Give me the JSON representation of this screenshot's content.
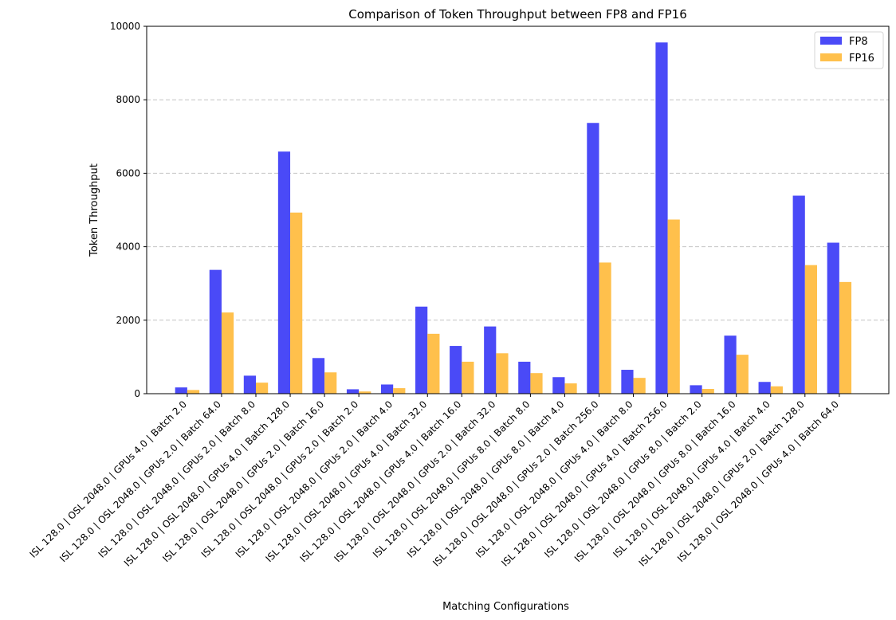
{
  "chart_data": {
    "type": "bar",
    "title": "Comparison of Token Throughput between FP8 and FP16",
    "xlabel": "Matching Configurations",
    "ylabel": "Token Throughput",
    "ylim": [
      0,
      10000
    ],
    "yticks": [
      0,
      2000,
      4000,
      6000,
      8000,
      10000
    ],
    "grid": "y-dashed",
    "legend_position": "top-right",
    "categories": [
      "ISL 128.0 | OSL 2048.0 | GPUs 4.0 | Batch 2.0",
      "ISL 128.0 | OSL 2048.0 | GPUs 2.0 | Batch 64.0",
      "ISL 128.0 | OSL 2048.0 | GPUs 2.0 | Batch 8.0",
      "ISL 128.0 | OSL 2048.0 | GPUs 4.0 | Batch 128.0",
      "ISL 128.0 | OSL 2048.0 | GPUs 2.0 | Batch 16.0",
      "ISL 128.0 | OSL 2048.0 | GPUs 2.0 | Batch 2.0",
      "ISL 128.0 | OSL 2048.0 | GPUs 2.0 | Batch 4.0",
      "ISL 128.0 | OSL 2048.0 | GPUs 4.0 | Batch 32.0",
      "ISL 128.0 | OSL 2048.0 | GPUs 4.0 | Batch 16.0",
      "ISL 128.0 | OSL 2048.0 | GPUs 2.0 | Batch 32.0",
      "ISL 128.0 | OSL 2048.0 | GPUs 8.0 | Batch 8.0",
      "ISL 128.0 | OSL 2048.0 | GPUs 8.0 | Batch 4.0",
      "ISL 128.0 | OSL 2048.0 | GPUs 2.0 | Batch 256.0",
      "ISL 128.0 | OSL 2048.0 | GPUs 4.0 | Batch 8.0",
      "ISL 128.0 | OSL 2048.0 | GPUs 4.0 | Batch 256.0",
      "ISL 128.0 | OSL 2048.0 | GPUs 8.0 | Batch 2.0",
      "ISL 128.0 | OSL 2048.0 | GPUs 8.0 | Batch 16.0",
      "ISL 128.0 | OSL 2048.0 | GPUs 4.0 | Batch 4.0",
      "ISL 128.0 | OSL 2048.0 | GPUs 2.0 | Batch 128.0",
      "ISL 128.0 | OSL 2048.0 | GPUs 4.0 | Batch 64.0"
    ],
    "series": [
      {
        "name": "FP8",
        "color": "#4a4af7",
        "values": [
          170,
          3370,
          490,
          6590,
          970,
          120,
          250,
          2370,
          1300,
          1830,
          870,
          450,
          7370,
          650,
          9560,
          230,
          1580,
          320,
          5390,
          4110
        ]
      },
      {
        "name": "FP16",
        "color": "#ffc04c",
        "values": [
          100,
          2210,
          300,
          4930,
          580,
          60,
          150,
          1630,
          870,
          1100,
          560,
          280,
          3570,
          430,
          4740,
          130,
          1060,
          200,
          3500,
          3040
        ]
      }
    ]
  }
}
